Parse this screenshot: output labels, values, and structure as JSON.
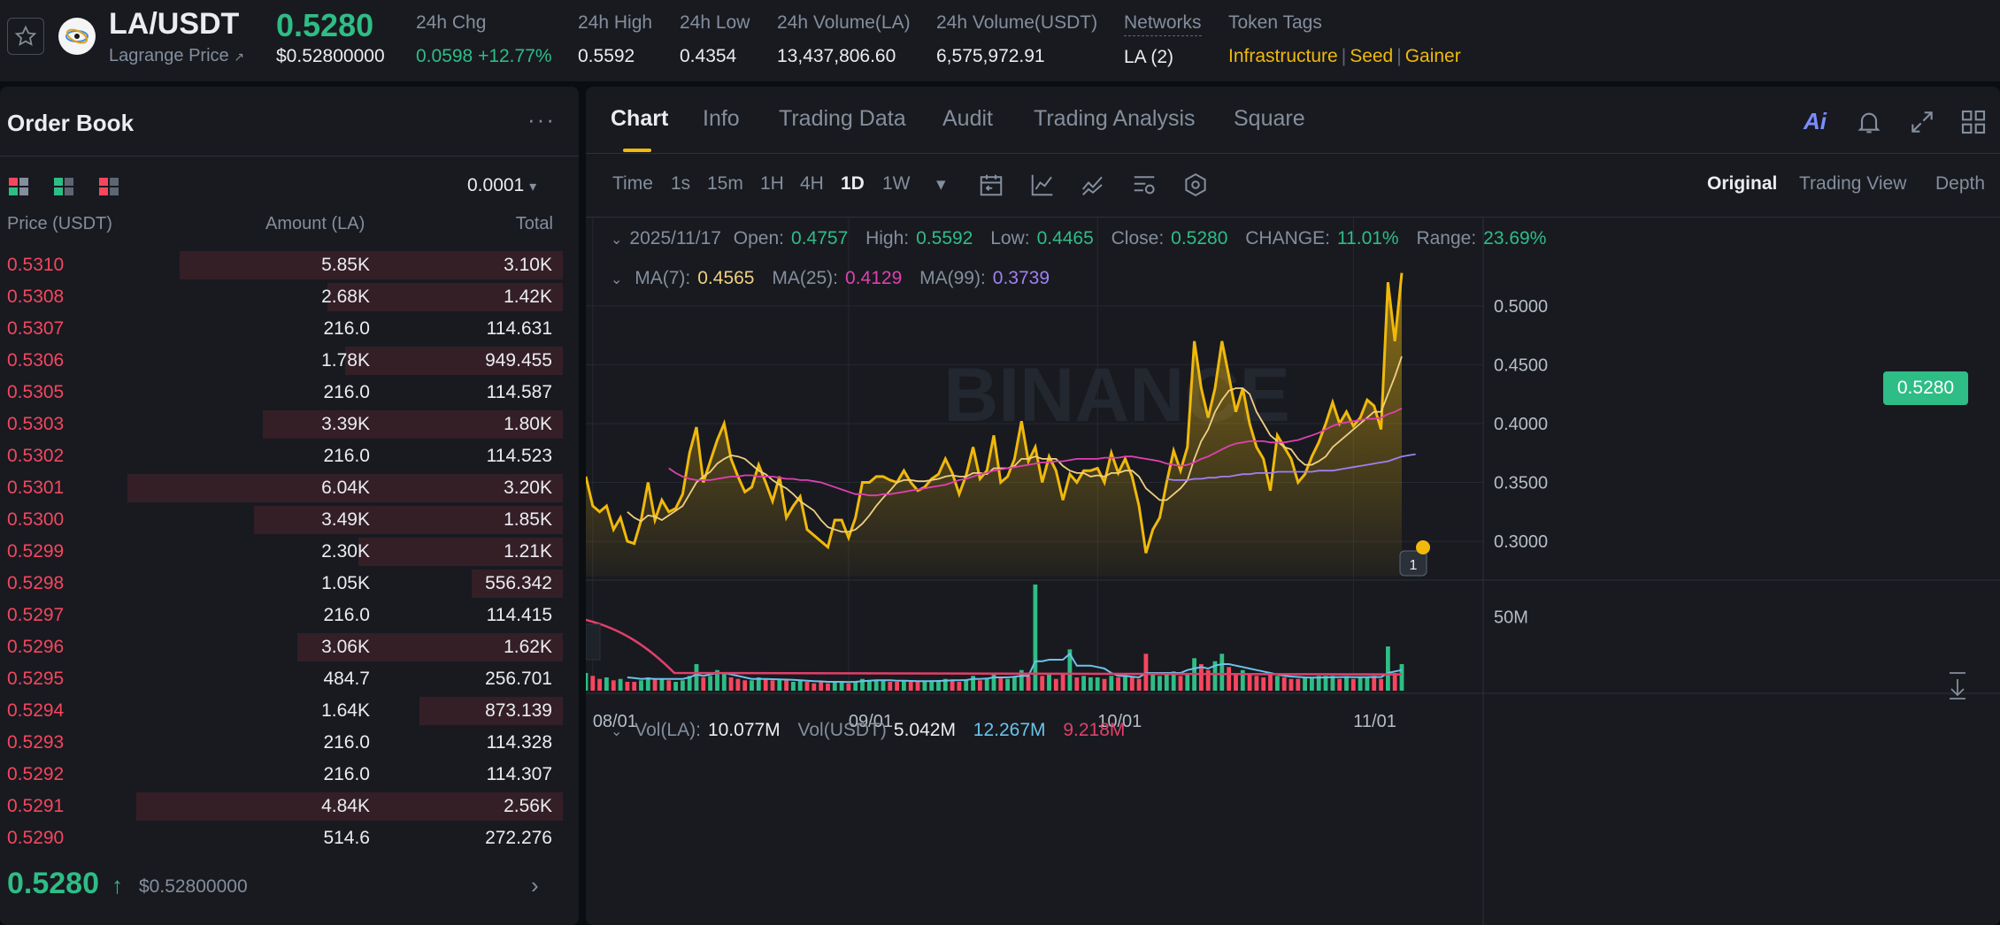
{
  "ticker": {
    "pair": "LA/USDT",
    "sub_label": "Lagrange Price",
    "sub_arrow": "↗",
    "last_price": "0.5280",
    "last_price_usd": "$0.52800000",
    "stats": [
      {
        "label": "24h Chg",
        "value": "0.0598 +12.77%",
        "color": "green"
      },
      {
        "label": "24h High",
        "value": "0.5592"
      },
      {
        "label": "24h Low",
        "value": "0.4354"
      },
      {
        "label": "24h Volume(LA)",
        "value": "13,437,806.60"
      },
      {
        "label": "24h Volume(USDT)",
        "value": "6,575,972.91"
      },
      {
        "label": "Networks",
        "value": "LA (2)"
      }
    ],
    "tags_label": "Token Tags",
    "tags": [
      "Infrastructure",
      "Seed",
      "Gainer"
    ],
    "tag_separator": "|"
  },
  "orderbook": {
    "title": "Order Book",
    "more": "···",
    "precision": "0.0001",
    "caret": "▾",
    "headers": {
      "price": "Price (USDT)",
      "amount": "Amount (LA)",
      "total": "Total"
    },
    "rows": [
      {
        "price": "0.5310",
        "amount": "5.85K",
        "total": "3.10K",
        "depth": 0.88
      },
      {
        "price": "0.5308",
        "amount": "2.68K",
        "total": "1.42K",
        "depth": 0.54
      },
      {
        "price": "0.5307",
        "amount": "216.0",
        "total": "114.631",
        "depth": 0.0
      },
      {
        "price": "0.5306",
        "amount": "1.78K",
        "total": "949.455",
        "depth": 0.5
      },
      {
        "price": "0.5305",
        "amount": "216.0",
        "total": "114.587",
        "depth": 0.0
      },
      {
        "price": "0.5303",
        "amount": "3.39K",
        "total": "1.80K",
        "depth": 0.69
      },
      {
        "price": "0.5302",
        "amount": "216.0",
        "total": "114.523",
        "depth": 0.0
      },
      {
        "price": "0.5301",
        "amount": "6.04K",
        "total": "3.20K",
        "depth": 1.0
      },
      {
        "price": "0.5300",
        "amount": "3.49K",
        "total": "1.85K",
        "depth": 0.71
      },
      {
        "price": "0.5299",
        "amount": "2.30K",
        "total": "1.21K",
        "depth": 0.47
      },
      {
        "price": "0.5298",
        "amount": "1.05K",
        "total": "556.342",
        "depth": 0.21
      },
      {
        "price": "0.5297",
        "amount": "216.0",
        "total": "114.415",
        "depth": 0.0
      },
      {
        "price": "0.5296",
        "amount": "3.06K",
        "total": "1.62K",
        "depth": 0.61
      },
      {
        "price": "0.5295",
        "amount": "484.7",
        "total": "256.701",
        "depth": 0.0
      },
      {
        "price": "0.5294",
        "amount": "1.64K",
        "total": "873.139",
        "depth": 0.33
      },
      {
        "price": "0.5293",
        "amount": "216.0",
        "total": "114.328",
        "depth": 0.0
      },
      {
        "price": "0.5292",
        "amount": "216.0",
        "total": "114.307",
        "depth": 0.0
      },
      {
        "price": "0.5291",
        "amount": "4.84K",
        "total": "2.56K",
        "depth": 0.98
      },
      {
        "price": "0.5290",
        "amount": "514.6",
        "total": "272.276",
        "depth": 0.0
      }
    ],
    "last_price": "0.5280",
    "last_arrow": "↑",
    "last_price_usd": "$0.52800000",
    "more_arrow": "›"
  },
  "chart_panel": {
    "tabs": [
      "Chart",
      "Info",
      "Trading Data",
      "Audit",
      "Trading Analysis",
      "Square"
    ],
    "active_tab": "Chart",
    "ai_label": "Ai",
    "timeframes": [
      "Time",
      "1s",
      "15m",
      "1H",
      "4H",
      "1D",
      "1W"
    ],
    "active_timeframe": "1D",
    "tf_caret": "▾",
    "views": [
      "Original",
      "Trading View",
      "Depth"
    ],
    "active_view": "Original",
    "ohlc": {
      "date": "2025/11/17",
      "open_label": "Open:",
      "open": "0.4757",
      "high_label": "High:",
      "high": "0.5592",
      "low_label": "Low:",
      "low": "0.4465",
      "close_label": "Close:",
      "close": "0.5280",
      "change_label": "CHANGE:",
      "change": "11.01%",
      "range_label": "Range:",
      "range": "23.69%"
    },
    "ma": {
      "ma7_label": "MA(7):",
      "ma7": "0.4565",
      "ma25_label": "MA(25):",
      "ma25": "0.4129",
      "ma99_label": "MA(99):",
      "ma99": "0.3739"
    },
    "vol": {
      "vol_la_label": "Vol(LA):",
      "vol_la": "10.077M",
      "vol_usdt_label": "Vol(USDT)",
      "vol_usdt": "5.042M",
      "ma1": "12.267M",
      "ma2": "9.218M"
    },
    "price_tag": "0.5280",
    "watermark": "BINANCE",
    "chevron": "⌄",
    "marker_label": "1",
    "colors": {
      "up": "#2ebd85",
      "down": "#f6465d",
      "line": "#f0b90b",
      "ma7": "#f0d080",
      "ma25": "#e040b0",
      "ma99": "#a080f0",
      "vol_ma1": "#6bc3e8",
      "vol_ma2": "#e0406a",
      "accent": "#f0b90b"
    }
  },
  "chart_data": {
    "type": "line",
    "x_ticks": [
      "08/01",
      "09/01",
      "10/01",
      "11/01"
    ],
    "y_ticks": [
      "0.5000",
      "0.4500",
      "0.4000",
      "0.3500",
      "0.3000"
    ],
    "vol_ticks": [
      "50M"
    ],
    "ylim": [
      0.27,
      0.56
    ],
    "vol_lim": [
      0,
      75
    ],
    "series": [
      {
        "values": [
          0.355,
          0.33,
          0.325,
          0.33,
          0.31,
          0.32,
          0.3,
          0.298,
          0.318,
          0.35,
          0.318,
          0.335,
          0.325,
          0.328,
          0.34,
          0.375,
          0.397,
          0.35,
          0.368,
          0.386,
          0.4,
          0.37,
          0.355,
          0.342,
          0.346,
          0.365,
          0.35,
          0.334,
          0.355,
          0.32,
          0.33,
          0.338,
          0.31,
          0.305,
          0.3,
          0.295,
          0.318,
          0.318,
          0.303,
          0.32,
          0.35,
          0.35,
          0.355,
          0.355,
          0.352,
          0.35,
          0.36,
          0.35,
          0.343,
          0.346,
          0.353,
          0.357,
          0.37,
          0.358,
          0.34,
          0.356,
          0.38,
          0.353,
          0.36,
          0.39,
          0.35,
          0.355,
          0.37,
          0.402,
          0.368,
          0.38,
          0.35,
          0.372,
          0.36,
          0.335,
          0.357,
          0.35,
          0.36,
          0.36,
          0.362,
          0.35,
          0.375,
          0.358,
          0.37,
          0.355,
          0.33,
          0.29,
          0.31,
          0.32,
          0.35,
          0.377,
          0.36,
          0.38,
          0.47,
          0.43,
          0.405,
          0.43,
          0.47,
          0.44,
          0.41,
          0.43,
          0.4,
          0.38,
          0.37,
          0.343,
          0.39,
          0.38,
          0.37,
          0.35,
          0.357,
          0.372,
          0.384,
          0.4,
          0.418,
          0.4,
          0.41,
          0.398,
          0.405,
          0.42,
          0.415,
          0.395,
          0.52,
          0.47,
          0.528
        ]
      },
      {
        "name": "MA(7)",
        "values": [
          null,
          null,
          null,
          null,
          null,
          null,
          0.325,
          0.32,
          0.317,
          0.322,
          0.321,
          0.318,
          0.322,
          0.326,
          0.33,
          0.34,
          0.35,
          0.355,
          0.359,
          0.366,
          0.37,
          0.373,
          0.372,
          0.37,
          0.365,
          0.36,
          0.357,
          0.352,
          0.348,
          0.345,
          0.34,
          0.334,
          0.33,
          0.326,
          0.318,
          0.312,
          0.31,
          0.308,
          0.308,
          0.31,
          0.315,
          0.322,
          0.33,
          0.337,
          0.343,
          0.35,
          0.352,
          0.352,
          0.351,
          0.351,
          0.352,
          0.353,
          0.355,
          0.356,
          0.355,
          0.355,
          0.358,
          0.358,
          0.357,
          0.362,
          0.362,
          0.362,
          0.364,
          0.37,
          0.37,
          0.372,
          0.37,
          0.37,
          0.37,
          0.364,
          0.36,
          0.358,
          0.358,
          0.355,
          0.356,
          0.355,
          0.358,
          0.358,
          0.36,
          0.36,
          0.355,
          0.345,
          0.34,
          0.335,
          0.335,
          0.34,
          0.345,
          0.352,
          0.37,
          0.385,
          0.395,
          0.41,
          0.42,
          0.428,
          0.43,
          0.43,
          0.425,
          0.41,
          0.4,
          0.39,
          0.385,
          0.38,
          0.378,
          0.37,
          0.365,
          0.365,
          0.368,
          0.372,
          0.38,
          0.385,
          0.39,
          0.395,
          0.4,
          0.405,
          0.41,
          0.41,
          0.425,
          0.44,
          0.457
        ]
      },
      {
        "name": "MA(25)",
        "values": [
          null,
          null,
          null,
          null,
          null,
          null,
          null,
          null,
          null,
          null,
          null,
          null,
          0.362,
          0.358,
          0.355,
          0.353,
          0.352,
          0.352,
          0.352,
          0.353,
          0.354,
          0.355,
          0.355,
          0.356,
          0.356,
          0.355,
          0.355,
          0.355,
          0.354,
          0.353,
          0.353,
          0.352,
          0.352,
          0.351,
          0.35,
          0.348,
          0.346,
          0.344,
          0.342,
          0.34,
          0.34,
          0.339,
          0.339,
          0.34,
          0.34,
          0.341,
          0.342,
          0.343,
          0.344,
          0.345,
          0.346,
          0.347,
          0.348,
          0.35,
          0.352,
          0.353,
          0.355,
          0.357,
          0.358,
          0.36,
          0.361,
          0.362,
          0.363,
          0.364,
          0.365,
          0.366,
          0.367,
          0.367,
          0.368,
          0.368,
          0.369,
          0.37,
          0.37,
          0.37,
          0.37,
          0.371,
          0.371,
          0.371,
          0.372,
          0.372,
          0.371,
          0.37,
          0.369,
          0.368,
          0.366,
          0.365,
          0.364,
          0.365,
          0.367,
          0.37,
          0.372,
          0.375,
          0.378,
          0.381,
          0.383,
          0.384,
          0.385,
          0.385,
          0.385,
          0.384,
          0.384,
          0.384,
          0.385,
          0.386,
          0.388,
          0.39,
          0.392,
          0.395,
          0.398,
          0.4,
          0.401,
          0.402,
          0.403,
          0.404,
          0.404,
          0.405,
          0.408,
          0.41,
          0.413
        ]
      },
      {
        "name": "MA(99)",
        "values": [
          null,
          null,
          null,
          null,
          null,
          null,
          null,
          null,
          null,
          null,
          null,
          null,
          null,
          null,
          null,
          null,
          null,
          null,
          null,
          null,
          null,
          null,
          null,
          null,
          null,
          null,
          null,
          null,
          null,
          null,
          null,
          null,
          null,
          null,
          null,
          null,
          null,
          null,
          null,
          null,
          null,
          null,
          null,
          null,
          null,
          null,
          null,
          null,
          null,
          null,
          null,
          null,
          null,
          null,
          null,
          null,
          null,
          null,
          null,
          null,
          null,
          null,
          null,
          null,
          null,
          null,
          null,
          null,
          null,
          null,
          null,
          null,
          null,
          null,
          null,
          null,
          null,
          null,
          null,
          null,
          null,
          null,
          null,
          null,
          0.353,
          0.352,
          0.352,
          0.352,
          0.353,
          0.353,
          0.354,
          0.354,
          0.355,
          0.355,
          0.356,
          0.357,
          0.357,
          0.358,
          0.358,
          0.358,
          0.359,
          0.359,
          0.359,
          0.359,
          0.359,
          0.359,
          0.36,
          0.36,
          0.36,
          0.361,
          0.362,
          0.363,
          0.364,
          0.365,
          0.366,
          0.367,
          0.368,
          0.37,
          0.372,
          0.373,
          0.374
        ]
      }
    ],
    "volume": [
      12,
      10,
      8,
      9,
      7,
      8,
      6,
      6,
      7,
      9,
      8,
      8,
      7,
      6,
      7,
      10,
      18,
      9,
      10,
      14,
      12,
      9,
      8,
      7,
      7,
      9,
      8,
      7,
      8,
      7,
      6,
      7,
      6,
      5,
      6,
      5,
      6,
      6,
      5,
      6,
      8,
      7,
      7,
      7,
      6,
      6,
      7,
      6,
      6,
      6,
      7,
      7,
      8,
      7,
      6,
      7,
      10,
      7,
      8,
      12,
      9,
      8,
      9,
      14,
      10,
      72,
      10,
      12,
      8,
      11,
      28,
      9,
      10,
      9,
      9,
      8,
      10,
      9,
      10,
      9,
      8,
      25,
      12,
      10,
      11,
      13,
      10,
      12,
      22,
      18,
      14,
      20,
      25,
      16,
      12,
      14,
      11,
      10,
      9,
      12,
      10,
      9,
      8,
      8,
      9,
      9,
      10,
      10,
      10,
      8,
      9,
      8,
      9,
      9,
      10,
      8,
      30,
      12,
      18
    ],
    "volume_up": [
      true,
      false,
      false,
      true,
      false,
      true,
      false,
      false,
      true,
      true,
      false,
      true,
      false,
      true,
      true,
      true,
      true,
      false,
      true,
      true,
      true,
      false,
      false,
      false,
      true,
      true,
      false,
      false,
      true,
      false,
      true,
      true,
      false,
      false,
      false,
      false,
      true,
      true,
      false,
      true,
      true,
      true,
      true,
      true,
      false,
      false,
      true,
      false,
      false,
      true,
      true,
      true,
      true,
      false,
      false,
      true,
      true,
      false,
      true,
      true,
      false,
      true,
      true,
      true,
      false,
      true,
      false,
      true,
      false,
      false,
      true,
      false,
      true,
      true,
      true,
      false,
      true,
      false,
      true,
      false,
      false,
      false,
      true,
      true,
      true,
      true,
      false,
      true,
      true,
      false,
      false,
      true,
      true,
      false,
      false,
      true,
      false,
      false,
      false,
      false,
      true,
      false,
      false,
      false,
      true,
      true,
      true,
      true,
      true,
      false,
      true,
      false,
      true,
      true,
      false,
      false,
      true,
      false,
      true
    ],
    "vol_ma1": [
      null,
      null,
      null,
      null,
      null,
      null,
      9,
      8.5,
      8,
      8.2,
      8,
      8,
      8,
      8,
      8,
      9,
      11,
      10,
      11,
      12,
      12,
      11,
      10,
      9,
      8,
      8,
      8,
      7.8,
      7.6,
      7.5,
      7.3,
      7,
      6.8,
      6.5,
      6.3,
      6,
      6,
      6,
      5.8,
      6,
      6.4,
      6.8,
      7,
      7,
      7,
      6.8,
      6.8,
      6.6,
      6.5,
      6.4,
      6.5,
      6.6,
      6.8,
      7,
      7,
      7.2,
      8,
      8,
      8.2,
      9,
      9,
      9,
      9.4,
      10,
      10,
      20,
      20,
      21,
      21,
      21,
      25,
      17,
      17,
      17,
      16,
      15,
      12,
      10,
      10,
      9.5,
      9,
      12,
      12,
      12,
      12,
      12,
      12,
      14,
      15,
      16,
      15,
      17,
      18,
      18,
      17,
      16,
      15,
      14,
      13,
      12,
      11,
      10,
      9.6,
      9.3,
      9,
      8.8,
      8.8,
      9,
      9.2,
      9.2,
      9.3,
      9.2,
      9.2,
      9.2,
      9.3,
      9.2,
      12,
      13,
      14
    ]
  }
}
